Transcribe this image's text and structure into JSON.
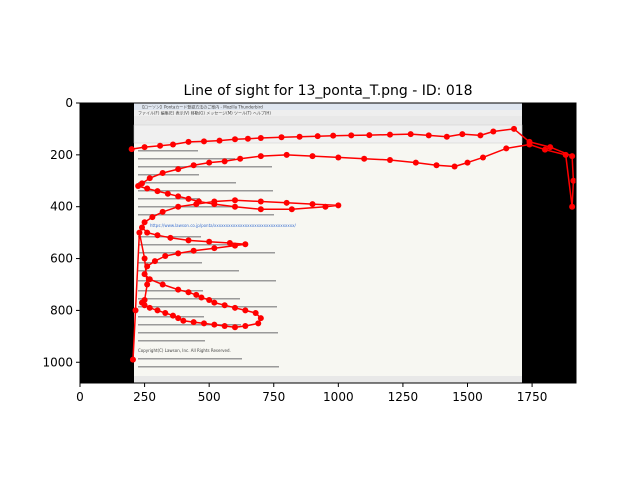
{
  "chart_data": {
    "type": "line",
    "title": "Line of sight for 13_ponta_T.png - ID: 018",
    "xlabel": "",
    "ylabel": "",
    "xlim": [
      0,
      1920
    ],
    "ylim": [
      1080,
      0
    ],
    "x_ticks": [
      0,
      250,
      500,
      750,
      1000,
      1250,
      1500,
      1750
    ],
    "y_ticks": [
      0,
      200,
      400,
      600,
      800,
      1000
    ],
    "grid": false,
    "background_image": {
      "title_bar": "【ローソン】Pontaカード登録方法のご案内 - Mozilla Thunderbird",
      "menu_bar": "ファイル(F)  編集(E)  表示(V)  移動(G)  メッセージ(M)  ツール(T)  ヘルプ(H)",
      "link_text": "https://www.lawson.co.jp/ponta/xxxxxxxxxxxxxxxxxxxxxxxxxxxxxxxxxx/",
      "copyright": "Copyright(C) Lawson, Inc. All Rights Reserved."
    },
    "series": [
      {
        "color": "#ff0000",
        "x": [
          200,
          250,
          310,
          360,
          420,
          480,
          540,
          600,
          650,
          700,
          780,
          850,
          920,
          980,
          1050,
          1120,
          1200,
          1280,
          1350,
          1420,
          1480,
          1550,
          1600,
          1680,
          1740,
          1820,
          1905,
          1910,
          1905,
          1880,
          1800,
          1740,
          1650,
          1560,
          1500,
          1450,
          1380,
          1300,
          1200,
          1100,
          1000,
          900,
          800,
          700,
          620,
          560,
          500,
          440,
          380,
          320,
          270,
          240,
          225,
          260,
          300,
          340,
          380,
          420,
          460,
          520,
          600,
          700,
          820,
          950,
          1000,
          900,
          800,
          700,
          600,
          520,
          450,
          380,
          320,
          280,
          250,
          240,
          260,
          300,
          350,
          420,
          500,
          580,
          640,
          600,
          520,
          440,
          380,
          330,
          290,
          260,
          250,
          270,
          320,
          380,
          420,
          450,
          470,
          500,
          520,
          560,
          600,
          640,
          680,
          700,
          690,
          640,
          600,
          560,
          520,
          480,
          440,
          400,
          380,
          360,
          330,
          300,
          270,
          250,
          240,
          250,
          260,
          250,
          230,
          215,
          205
        ],
        "y": [
          178,
          170,
          165,
          160,
          150,
          148,
          145,
          140,
          138,
          135,
          132,
          130,
          128,
          126,
          125,
          124,
          122,
          120,
          125,
          130,
          120,
          125,
          110,
          100,
          150,
          170,
          205,
          300,
          400,
          200,
          180,
          160,
          175,
          210,
          230,
          245,
          240,
          230,
          220,
          215,
          210,
          205,
          200,
          205,
          215,
          225,
          230,
          240,
          255,
          270,
          290,
          310,
          320,
          330,
          340,
          350,
          360,
          370,
          380,
          390,
          400,
          410,
          410,
          400,
          395,
          390,
          385,
          380,
          375,
          380,
          390,
          400,
          420,
          440,
          460,
          480,
          500,
          510,
          520,
          530,
          535,
          540,
          545,
          550,
          560,
          570,
          580,
          590,
          610,
          630,
          660,
          680,
          700,
          720,
          730,
          740,
          750,
          760,
          770,
          780,
          790,
          800,
          810,
          830,
          850,
          860,
          865,
          860,
          855,
          850,
          845,
          840,
          830,
          820,
          810,
          800,
          790,
          780,
          770,
          760,
          700,
          600,
          500,
          800,
          990
        ]
      }
    ]
  }
}
